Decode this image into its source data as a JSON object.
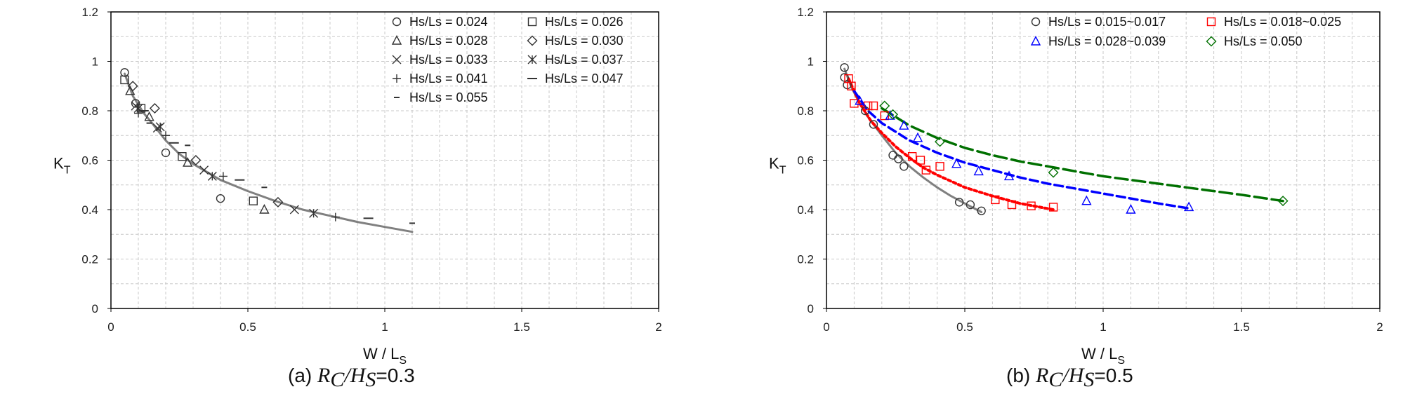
{
  "colors": {
    "gray": "#808080",
    "red": "#ff0000",
    "blue": "#0000ff",
    "green": "#007000"
  },
  "chart_data": [
    {
      "type": "scatter",
      "panel": "(a)",
      "caption": {
        "prefix": "(a) ",
        "ratio_num": "R",
        "num_sub": "C",
        "ratio_den": "H",
        "den_sub": "S",
        "value": "=0.3"
      },
      "xlabel": {
        "main": "W / L",
        "sub": "S"
      },
      "ylabel": {
        "main": "K",
        "sub": "T"
      },
      "xlim": [
        0,
        2
      ],
      "ylim": [
        0,
        1.2
      ],
      "xticks": [
        "0",
        "0.5",
        "1",
        "1.5",
        "2"
      ],
      "yticks": [
        "0",
        "0.2",
        "0.4",
        "0.6",
        "0.8",
        "1",
        "1.2"
      ],
      "grid": true,
      "legend_position": "top-right",
      "series": [
        {
          "name": "Hs/Ls = 0.024",
          "marker": "circle",
          "color": "#333333",
          "points": [
            [
              0.05,
              0.955
            ],
            [
              0.09,
              0.83
            ],
            [
              0.2,
              0.63
            ],
            [
              0.4,
              0.445
            ]
          ]
        },
        {
          "name": "Hs/Ls = 0.026",
          "marker": "square",
          "color": "#333333",
          "points": [
            [
              0.05,
              0.925
            ],
            [
              0.11,
              0.81
            ],
            [
              0.26,
              0.615
            ],
            [
              0.52,
              0.435
            ]
          ]
        },
        {
          "name": "Hs/Ls = 0.028",
          "marker": "triangle",
          "color": "#333333",
          "points": [
            [
              0.07,
              0.88
            ],
            [
              0.14,
              0.775
            ],
            [
              0.28,
              0.59
            ],
            [
              0.56,
              0.4
            ]
          ]
        },
        {
          "name": "Hs/Ls = 0.030",
          "marker": "diamond",
          "color": "#333333",
          "points": [
            [
              0.08,
              0.9
            ],
            [
              0.16,
              0.81
            ],
            [
              0.31,
              0.6
            ],
            [
              0.61,
              0.43
            ]
          ]
        },
        {
          "name": "Hs/Ls = 0.033",
          "marker": "x",
          "color": "#333333",
          "points": [
            [
              0.09,
              0.82
            ],
            [
              0.17,
              0.73
            ],
            [
              0.34,
              0.56
            ],
            [
              0.67,
              0.4
            ]
          ]
        },
        {
          "name": "Hs/Ls = 0.037",
          "marker": "asterisk",
          "color": "#333333",
          "points": [
            [
              0.1,
              0.81
            ],
            [
              0.18,
              0.735
            ],
            [
              0.37,
              0.535
            ],
            [
              0.74,
              0.385
            ]
          ]
        },
        {
          "name": "Hs/Ls = 0.041",
          "marker": "plus",
          "color": "#333333",
          "points": [
            [
              0.1,
              0.79
            ],
            [
              0.2,
              0.7
            ],
            [
              0.41,
              0.535
            ],
            [
              0.82,
              0.37
            ]
          ]
        },
        {
          "name": "Hs/Ls = 0.047",
          "marker": "dash",
          "color": "#333333",
          "points": [
            [
              0.12,
              0.8
            ],
            [
              0.23,
              0.67
            ],
            [
              0.47,
              0.52
            ],
            [
              0.94,
              0.365
            ]
          ]
        },
        {
          "name": "Hs/Ls = 0.055",
          "marker": "smalldash",
          "color": "#333333",
          "points": [
            [
              0.14,
              0.75
            ],
            [
              0.28,
              0.66
            ],
            [
              0.56,
              0.49
            ],
            [
              1.1,
              0.345
            ]
          ]
        }
      ],
      "fits": [
        {
          "color": "#808080",
          "style": "solid",
          "width": 3,
          "points": [
            [
              0.05,
              0.95
            ],
            [
              0.08,
              0.86
            ],
            [
              0.12,
              0.79
            ],
            [
              0.15,
              0.75
            ],
            [
              0.2,
              0.68
            ],
            [
              0.25,
              0.625
            ],
            [
              0.3,
              0.585
            ],
            [
              0.4,
              0.52
            ],
            [
              0.5,
              0.475
            ],
            [
              0.6,
              0.435
            ],
            [
              0.7,
              0.4
            ],
            [
              0.8,
              0.375
            ],
            [
              0.9,
              0.35
            ],
            [
              1.0,
              0.33
            ],
            [
              1.1,
              0.31
            ]
          ]
        }
      ]
    },
    {
      "type": "scatter",
      "panel": "(b)",
      "caption": {
        "prefix": "(b) ",
        "ratio_num": "R",
        "num_sub": "C",
        "ratio_den": "H",
        "den_sub": "S",
        "value": "=0.5"
      },
      "xlabel": {
        "main": "W / L",
        "sub": "S"
      },
      "ylabel": {
        "main": "K",
        "sub": "T"
      },
      "xlim": [
        0,
        2
      ],
      "ylim": [
        0,
        1.2
      ],
      "xticks": [
        "0",
        "0.5",
        "1",
        "1.5",
        "2"
      ],
      "yticks": [
        "0",
        "0.2",
        "0.4",
        "0.6",
        "0.8",
        "1",
        "1.2"
      ],
      "grid": true,
      "legend_position": "top-right",
      "series": [
        {
          "name": "Hs/Ls = 0.015~0.017",
          "marker": "circle",
          "color": "#333333",
          "points": [
            [
              0.065,
              0.975
            ],
            [
              0.065,
              0.935
            ],
            [
              0.075,
              0.905
            ],
            [
              0.14,
              0.8
            ],
            [
              0.17,
              0.745
            ],
            [
              0.24,
              0.62
            ],
            [
              0.26,
              0.605
            ],
            [
              0.28,
              0.575
            ],
            [
              0.48,
              0.43
            ],
            [
              0.52,
              0.42
            ],
            [
              0.56,
              0.395
            ]
          ]
        },
        {
          "name": "Hs/Ls = 0.018~0.025",
          "marker": "square",
          "color": "#ff0000",
          "points": [
            [
              0.08,
              0.93
            ],
            [
              0.09,
              0.9
            ],
            [
              0.1,
              0.83
            ],
            [
              0.15,
              0.82
            ],
            [
              0.17,
              0.82
            ],
            [
              0.21,
              0.78
            ],
            [
              0.31,
              0.615
            ],
            [
              0.34,
              0.6
            ],
            [
              0.36,
              0.56
            ],
            [
              0.41,
              0.575
            ],
            [
              0.61,
              0.44
            ],
            [
              0.67,
              0.42
            ],
            [
              0.74,
              0.415
            ],
            [
              0.82,
              0.41
            ]
          ]
        },
        {
          "name": "Hs/Ls = 0.028~0.039",
          "marker": "triangle",
          "color": "#0000ff",
          "points": [
            [
              0.12,
              0.84
            ],
            [
              0.23,
              0.78
            ],
            [
              0.28,
              0.74
            ],
            [
              0.33,
              0.69
            ],
            [
              0.47,
              0.585
            ],
            [
              0.55,
              0.555
            ],
            [
              0.66,
              0.535
            ],
            [
              0.94,
              0.435
            ],
            [
              1.1,
              0.4
            ],
            [
              1.31,
              0.41
            ]
          ]
        },
        {
          "name": "Hs/Ls = 0.050",
          "marker": "diamond",
          "color": "#007000",
          "points": [
            [
              0.21,
              0.82
            ],
            [
              0.24,
              0.785
            ],
            [
              0.41,
              0.675
            ],
            [
              0.82,
              0.55
            ],
            [
              1.65,
              0.435
            ]
          ]
        }
      ],
      "fits": [
        {
          "color": "#808080",
          "style": "solid",
          "width": 3,
          "points": [
            [
              0.065,
              0.97
            ],
            [
              0.09,
              0.895
            ],
            [
              0.12,
              0.83
            ],
            [
              0.15,
              0.775
            ],
            [
              0.2,
              0.7
            ],
            [
              0.25,
              0.63
            ],
            [
              0.3,
              0.575
            ],
            [
              0.35,
              0.53
            ],
            [
              0.4,
              0.49
            ],
            [
              0.45,
              0.455
            ],
            [
              0.5,
              0.425
            ],
            [
              0.56,
              0.39
            ]
          ]
        },
        {
          "color": "#ff0000",
          "style": "dotted",
          "width": 4,
          "points": [
            [
              0.08,
              0.93
            ],
            [
              0.12,
              0.83
            ],
            [
              0.16,
              0.76
            ],
            [
              0.2,
              0.71
            ],
            [
              0.25,
              0.655
            ],
            [
              0.3,
              0.61
            ],
            [
              0.35,
              0.57
            ],
            [
              0.4,
              0.54
            ],
            [
              0.5,
              0.49
            ],
            [
              0.6,
              0.455
            ],
            [
              0.7,
              0.425
            ],
            [
              0.82,
              0.4
            ]
          ]
        },
        {
          "color": "#0000ff",
          "style": "dashed",
          "width": 3.5,
          "points": [
            [
              0.1,
              0.88
            ],
            [
              0.15,
              0.8
            ],
            [
              0.2,
              0.75
            ],
            [
              0.3,
              0.68
            ],
            [
              0.4,
              0.63
            ],
            [
              0.5,
              0.59
            ],
            [
              0.6,
              0.56
            ],
            [
              0.7,
              0.53
            ],
            [
              0.8,
              0.505
            ],
            [
              0.9,
              0.485
            ],
            [
              1.0,
              0.465
            ],
            [
              1.1,
              0.445
            ],
            [
              1.2,
              0.425
            ],
            [
              1.31,
              0.405
            ]
          ]
        },
        {
          "color": "#007000",
          "style": "longdash",
          "width": 3.5,
          "points": [
            [
              0.2,
              0.81
            ],
            [
              0.3,
              0.74
            ],
            [
              0.4,
              0.69
            ],
            [
              0.5,
              0.65
            ],
            [
              0.6,
              0.62
            ],
            [
              0.7,
              0.595
            ],
            [
              0.8,
              0.575
            ],
            [
              0.9,
              0.555
            ],
            [
              1.0,
              0.535
            ],
            [
              1.1,
              0.52
            ],
            [
              1.2,
              0.505
            ],
            [
              1.3,
              0.49
            ],
            [
              1.4,
              0.475
            ],
            [
              1.5,
              0.46
            ],
            [
              1.65,
              0.435
            ]
          ]
        }
      ]
    }
  ]
}
